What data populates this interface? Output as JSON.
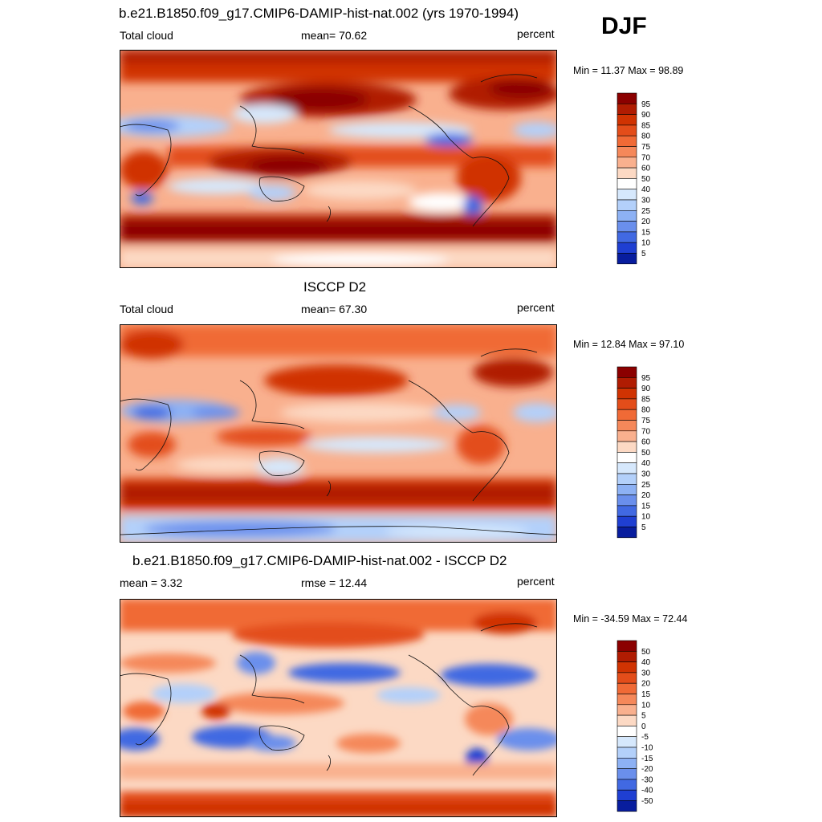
{
  "season": "DJF",
  "units": "percent",
  "panels": [
    {
      "id": "model",
      "title": "b.e21.B1850.f09_g17.CMIP6-DAMIP-hist-nat.002 (yrs 1970-1994)",
      "left_label": "Total cloud",
      "center_label": "mean=  70.62",
      "right_label": "percent",
      "min_max": "Min =  11.37 Max =  98.89",
      "colorbar": {
        "levels": [
          "95",
          "90",
          "85",
          "80",
          "75",
          "70",
          "60",
          "50",
          "40",
          "30",
          "25",
          "20",
          "15",
          "10",
          "5"
        ],
        "colors": [
          "#8B0000",
          "#B01C02",
          "#D03302",
          "#E34D1A",
          "#F06A36",
          "#F5885A",
          "#F9B08E",
          "#FCD9C4",
          "#FFFFFF",
          "#D6E8FC",
          "#B3D0FA",
          "#8DB1F4",
          "#6A8FEC",
          "#4169E2",
          "#1F3FD2",
          "#081D9E"
        ]
      }
    },
    {
      "id": "obs",
      "title": "ISCCP D2",
      "left_label": "Total cloud",
      "center_label": "mean=  67.30",
      "right_label": "percent",
      "min_max": "Min =  12.84 Max =  97.10",
      "colorbar": {
        "levels": [
          "95",
          "90",
          "85",
          "80",
          "75",
          "70",
          "60",
          "50",
          "40",
          "30",
          "25",
          "20",
          "15",
          "10",
          "5"
        ],
        "colors": [
          "#8B0000",
          "#B01C02",
          "#D03302",
          "#E34D1A",
          "#F06A36",
          "#F5885A",
          "#F9B08E",
          "#FCD9C4",
          "#FFFFFF",
          "#D6E8FC",
          "#B3D0FA",
          "#8DB1F4",
          "#6A8FEC",
          "#4169E2",
          "#1F3FD2",
          "#081D9E"
        ]
      }
    },
    {
      "id": "diff",
      "title": "b.e21.B1850.f09_g17.CMIP6-DAMIP-hist-nat.002 - ISCCP D2",
      "left_label": "mean =   3.32",
      "center_label": "rmse =  12.44",
      "right_label": "percent",
      "min_max": "Min = -34.59 Max =  72.44",
      "colorbar": {
        "levels": [
          "50",
          "40",
          "30",
          "20",
          "15",
          "10",
          "5",
          "0",
          "-5",
          "-10",
          "-15",
          "-20",
          "-30",
          "-40",
          "-50"
        ],
        "colors": [
          "#8B0000",
          "#B01C02",
          "#D03302",
          "#E34D1A",
          "#F06A36",
          "#F5885A",
          "#F9B08E",
          "#FCD9C4",
          "#FFFFFF",
          "#D6E8FC",
          "#B3D0FA",
          "#8DB1F4",
          "#6A8FEC",
          "#4169E2",
          "#1F3FD2",
          "#081D9E"
        ]
      }
    }
  ]
}
